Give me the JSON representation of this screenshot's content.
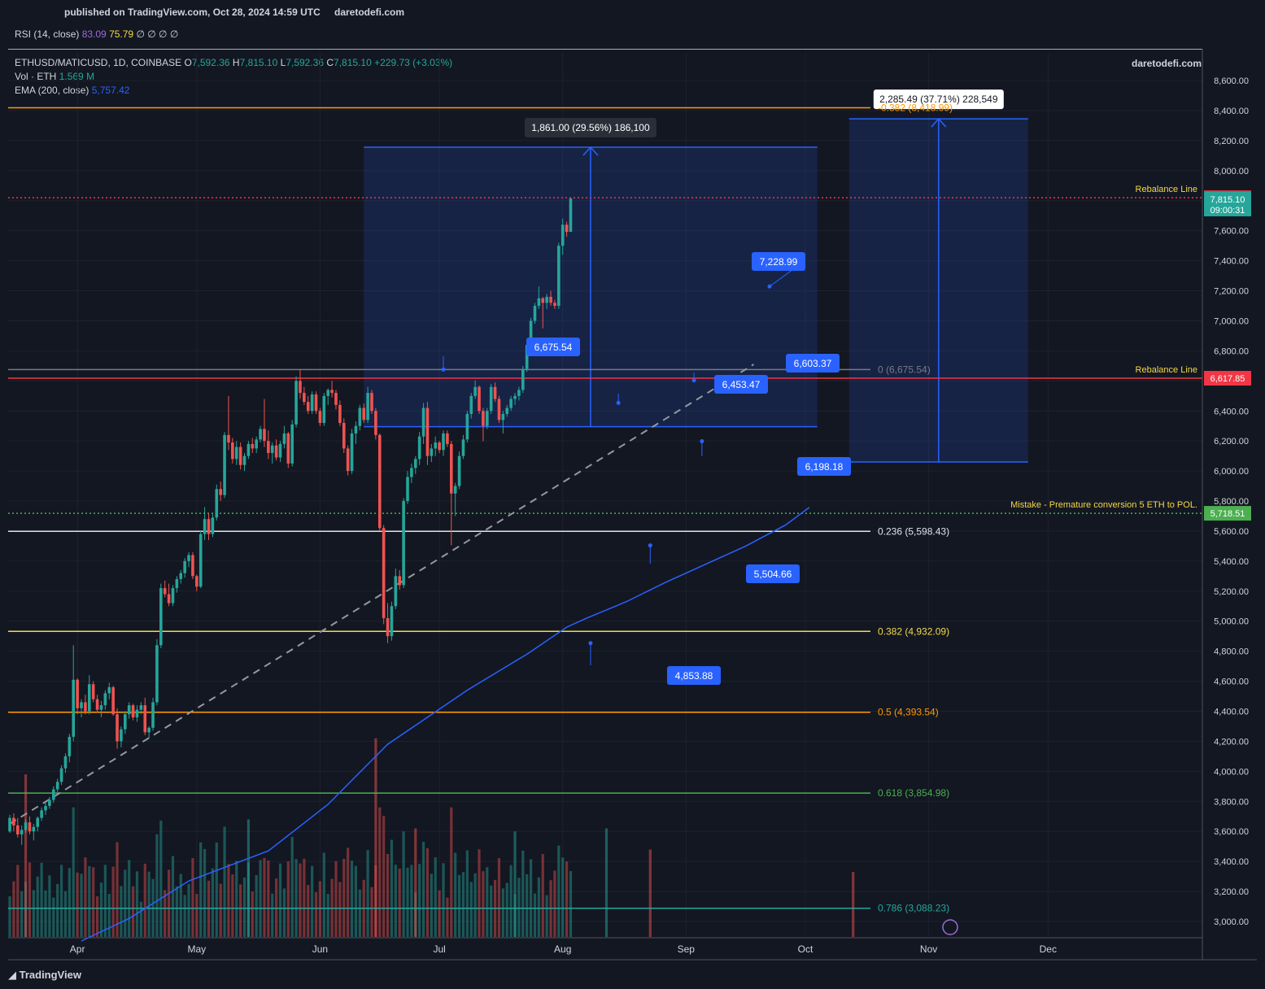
{
  "header": {
    "published": "published on TradingView.com, Oct 28, 2024 14:59 UTC",
    "site": "daretodefi.com"
  },
  "rsi": {
    "label": "RSI (14, close)",
    "v1": "83.09",
    "v2": "75.79",
    "nulls": "∅ ∅ ∅ ∅"
  },
  "symbol": {
    "name": "ETHUSD/MATICUSD, 1D, COINBASE",
    "o_label": "O",
    "o": "7,592.36",
    "h_label": "H",
    "h": "7,815.10",
    "l_label": "L",
    "l": "7,592.36",
    "c_label": "C",
    "c": "7,815.10",
    "change": "+229.73 (+3.03%)",
    "vol_label": "Vol · ETH",
    "vol": "1.569 M",
    "ema_label": "EMA (200, close)",
    "ema": "5,757.42"
  },
  "watermark": "daretodefi.com",
  "unit_button": "MATIC",
  "footer": {
    "brand": "TradingView"
  },
  "colors": {
    "up": "#26a69a",
    "down": "#ef5350",
    "ema": "#2962ff",
    "box": "#2962ff",
    "rebalance": "#f23645",
    "mistake": "#4caf50"
  },
  "chart_data": {
    "type": "candlestick",
    "title": "ETHUSD/MATICUSD, 1D, COINBASE",
    "ylim": [
      2900,
      8750
    ],
    "y_ticks": [
      "3,000.00",
      "3,200.00",
      "3,400.00",
      "3,600.00",
      "3,800.00",
      "4,000.00",
      "4,200.00",
      "4,400.00",
      "4,600.00",
      "4,800.00",
      "5,000.00",
      "5,200.00",
      "5,400.00",
      "5,600.00",
      "5,800.00",
      "6,000.00",
      "6,200.00",
      "6,400.00",
      "6,600.00",
      "6,800.00",
      "7,000.00",
      "7,200.00",
      "7,400.00",
      "7,600.00",
      "7,800.00",
      "8,000.00",
      "8,200.00",
      "8,400.00",
      "8,600.00"
    ],
    "y_tick_values": [
      3000,
      3200,
      3400,
      3600,
      3800,
      4000,
      4200,
      4400,
      4600,
      4800,
      5000,
      5200,
      5400,
      5600,
      5800,
      6000,
      6200,
      6400,
      6600,
      6800,
      7000,
      7200,
      7400,
      7600,
      7800,
      8000,
      8200,
      8400,
      8600
    ],
    "x_ticks": [
      "Apr",
      "May",
      "Jun",
      "Jul",
      "Aug",
      "Sep",
      "Oct",
      "Nov",
      "Dec"
    ],
    "x_tick_days": [
      17,
      47,
      78,
      108,
      139,
      170,
      200,
      231,
      261
    ],
    "fib_levels": [
      {
        "label": "-0.382 (8,418.99)",
        "value": 8418.99,
        "color": "#ff9800"
      },
      {
        "label": "0 (6,675.54)",
        "value": 6675.54,
        "color": "#787b86"
      },
      {
        "label": "0.236 (5,598.43)",
        "value": 5598.43,
        "color": "#e0e3eb"
      },
      {
        "label": "0.382 (4,932.09)",
        "value": 4932.09,
        "color": "#f5d946"
      },
      {
        "label": "0.5 (4,393.54)",
        "value": 4393.54,
        "color": "#ff9800"
      },
      {
        "label": "0.618 (3,854.98)",
        "value": 3854.98,
        "color": "#4caf50"
      },
      {
        "label": "0.786 (3,088.23)",
        "value": 3088.23,
        "color": "#26a69a"
      }
    ],
    "horizontal_lines": [
      {
        "label": "Rebalance Line",
        "value": 7819.89,
        "price_label": "7,819.89",
        "color": "#f23645",
        "style": "dotted"
      },
      {
        "label": "Rebalance Line",
        "value": 6617.85,
        "price_label": "6,617.85",
        "color": "#f23645",
        "style": "solid"
      },
      {
        "label": "Mistake - Premature conversion 5 ETH to POL.",
        "value": 5718.51,
        "price_label": "5,718.51",
        "color": "#4caf50",
        "style": "dotted"
      }
    ],
    "last_price": {
      "price": "7,815.10",
      "countdown": "09:00:31",
      "value": 7815.1
    },
    "price_callouts": [
      {
        "label": "6,675.54",
        "day": 109,
        "value": 6675.54
      },
      {
        "label": "6,453.47",
        "day": 153,
        "value": 6453.47
      },
      {
        "label": "6,603.37",
        "day": 172,
        "value": 6603.37
      },
      {
        "label": "7,228.99",
        "day": 191,
        "value": 7228.99
      },
      {
        "label": "6,198.18",
        "day": 174,
        "value": 6198.18
      },
      {
        "label": "5,504.66",
        "day": 161,
        "value": 5504.66
      },
      {
        "label": "4,853.88",
        "day": 146,
        "value": 4853.88
      }
    ],
    "measure_boxes": [
      {
        "label": "1,861.00 (29.56%) 186,100",
        "day_start": 89,
        "day_end": 203,
        "from": 6295,
        "to": 8156
      },
      {
        "label": "2,285.49 (37.71%) 228,549",
        "day_start": 211,
        "day_end": 256,
        "from": 6060,
        "to": 8345
      }
    ],
    "trend_line": {
      "from_day": 0,
      "from_value": 3650,
      "to_day": 187,
      "to_value": 6710
    },
    "ema_points": [
      [
        18,
        2870
      ],
      [
        30,
        3020
      ],
      [
        45,
        3270
      ],
      [
        65,
        3470
      ],
      [
        80,
        3780
      ],
      [
        95,
        4180
      ],
      [
        115,
        4540
      ],
      [
        130,
        4780
      ],
      [
        140,
        4960
      ],
      [
        145,
        5020
      ],
      [
        155,
        5130
      ],
      [
        165,
        5260
      ],
      [
        175,
        5380
      ],
      [
        185,
        5500
      ],
      [
        195,
        5640
      ],
      [
        201,
        5757.42
      ]
    ],
    "candles": [
      [
        3600,
        3710,
        3590,
        3690
      ],
      [
        3690,
        3720,
        3600,
        3640
      ],
      [
        3640,
        3690,
        3560,
        3580
      ],
      [
        3580,
        3640,
        3510,
        3610
      ],
      [
        3610,
        3680,
        3590,
        3660
      ],
      [
        3660,
        3700,
        3580,
        3600
      ],
      [
        3600,
        3650,
        3540,
        3630
      ],
      [
        3630,
        3700,
        3600,
        3690
      ],
      [
        3690,
        3760,
        3670,
        3740
      ],
      [
        3740,
        3790,
        3710,
        3770
      ],
      [
        3770,
        3830,
        3750,
        3810
      ],
      [
        3810,
        3900,
        3790,
        3880
      ],
      [
        3880,
        3950,
        3850,
        3930
      ],
      [
        3930,
        4040,
        3910,
        4020
      ],
      [
        4020,
        4120,
        3990,
        4100
      ],
      [
        4100,
        4250,
        4060,
        4230
      ],
      [
        4230,
        4840,
        4200,
        4610
      ],
      [
        4610,
        4620,
        4380,
        4420
      ],
      [
        4420,
        4480,
        4360,
        4460
      ],
      [
        4460,
        4510,
        4380,
        4400
      ],
      [
        4400,
        4640,
        4380,
        4580
      ],
      [
        4580,
        4600,
        4460,
        4480
      ],
      [
        4480,
        4510,
        4390,
        4410
      ],
      [
        4410,
        4470,
        4360,
        4440
      ],
      [
        4440,
        4540,
        4410,
        4520
      ],
      [
        4520,
        4590,
        4480,
        4560
      ],
      [
        4560,
        4570,
        4370,
        4380
      ],
      [
        4380,
        4420,
        4150,
        4200
      ],
      [
        4200,
        4300,
        4160,
        4280
      ],
      [
        4280,
        4400,
        4250,
        4380
      ],
      [
        4380,
        4460,
        4350,
        4440
      ],
      [
        4440,
        4450,
        4340,
        4360
      ],
      [
        4360,
        4440,
        4330,
        4410
      ],
      [
        4410,
        4460,
        4380,
        4440
      ],
      [
        4440,
        4490,
        4240,
        4260
      ],
      [
        4260,
        4300,
        4220,
        4290
      ],
      [
        4290,
        4490,
        4270,
        4460
      ],
      [
        4460,
        4880,
        4440,
        4840
      ],
      [
        4840,
        5250,
        4820,
        5220
      ],
      [
        5220,
        5270,
        5160,
        5180
      ],
      [
        5180,
        5250,
        5100,
        5120
      ],
      [
        5120,
        5240,
        5100,
        5220
      ],
      [
        5220,
        5300,
        5190,
        5280
      ],
      [
        5280,
        5340,
        5250,
        5320
      ],
      [
        5320,
        5420,
        5290,
        5400
      ],
      [
        5400,
        5460,
        5360,
        5440
      ],
      [
        5440,
        5460,
        5280,
        5300
      ],
      [
        5300,
        5310,
        5200,
        5230
      ],
      [
        5230,
        5600,
        5220,
        5580
      ],
      [
        5580,
        5760,
        5540,
        5680
      ],
      [
        5680,
        5720,
        5540,
        5580
      ],
      [
        5580,
        5720,
        5560,
        5690
      ],
      [
        5690,
        5910,
        5670,
        5880
      ],
      [
        5880,
        5930,
        5800,
        5840
      ],
      [
        5840,
        6260,
        5820,
        6240
      ],
      [
        6240,
        6500,
        6140,
        6190
      ],
      [
        6190,
        6220,
        6050,
        6080
      ],
      [
        6080,
        6200,
        6040,
        6160
      ],
      [
        6160,
        6190,
        6010,
        6040
      ],
      [
        6040,
        6120,
        6000,
        6100
      ],
      [
        6100,
        6200,
        6080,
        6180
      ],
      [
        6180,
        6220,
        6120,
        6150
      ],
      [
        6150,
        6230,
        6120,
        6210
      ],
      [
        6210,
        6300,
        6190,
        6280
      ],
      [
        6280,
        6480,
        6160,
        6200
      ],
      [
        6200,
        6270,
        6080,
        6120
      ],
      [
        6120,
        6190,
        6050,
        6170
      ],
      [
        6170,
        6210,
        6070,
        6090
      ],
      [
        6090,
        6200,
        6060,
        6180
      ],
      [
        6180,
        6300,
        6150,
        6250
      ],
      [
        6250,
        6260,
        6020,
        6050
      ],
      [
        6050,
        6340,
        6030,
        6310
      ],
      [
        6310,
        6630,
        6290,
        6600
      ],
      [
        6600,
        6676,
        6480,
        6520
      ],
      [
        6520,
        6560,
        6440,
        6460
      ],
      [
        6460,
        6500,
        6380,
        6400
      ],
      [
        6400,
        6530,
        6380,
        6510
      ],
      [
        6510,
        6530,
        6380,
        6400
      ],
      [
        6400,
        6420,
        6300,
        6320
      ],
      [
        6320,
        6520,
        6300,
        6500
      ],
      [
        6500,
        6550,
        6440,
        6540
      ],
      [
        6540,
        6600,
        6490,
        6520
      ],
      [
        6520,
        6540,
        6410,
        6440
      ],
      [
        6440,
        6470,
        6300,
        6320
      ],
      [
        6320,
        6350,
        6120,
        6150
      ],
      [
        6150,
        6170,
        5970,
        6000
      ],
      [
        6000,
        6280,
        5980,
        6250
      ],
      [
        6250,
        6330,
        6180,
        6300
      ],
      [
        6300,
        6440,
        6270,
        6420
      ],
      [
        6420,
        6450,
        6320,
        6340
      ],
      [
        6340,
        6560,
        6320,
        6520
      ],
      [
        6520,
        6540,
        6380,
        6400
      ],
      [
        6400,
        6420,
        6210,
        6240
      ],
      [
        6240,
        6250,
        5600,
        5620
      ],
      [
        5620,
        5640,
        4980,
        5020
      ],
      [
        5020,
        5120,
        4854,
        4900
      ],
      [
        4900,
        5130,
        4870,
        5100
      ],
      [
        5100,
        5350,
        5080,
        5300
      ],
      [
        5300,
        5340,
        5210,
        5240
      ],
      [
        5240,
        5820,
        5220,
        5800
      ],
      [
        5800,
        6000,
        5780,
        5960
      ],
      [
        5960,
        6050,
        5920,
        6020
      ],
      [
        6020,
        6100,
        5980,
        6080
      ],
      [
        6080,
        6260,
        6040,
        6230
      ],
      [
        6230,
        6453,
        6180,
        6420
      ],
      [
        6420,
        6460,
        6040,
        6100
      ],
      [
        6100,
        6180,
        6060,
        6150
      ],
      [
        6150,
        6230,
        6100,
        6190
      ],
      [
        6190,
        6200,
        6120,
        6140
      ],
      [
        6140,
        6270,
        6100,
        6250
      ],
      [
        6250,
        6270,
        6160,
        6180
      ],
      [
        6180,
        6200,
        5505,
        5850
      ],
      [
        5850,
        5920,
        5700,
        5900
      ],
      [
        5900,
        6130,
        5880,
        6100
      ],
      [
        6100,
        6240,
        6080,
        6210
      ],
      [
        6210,
        6400,
        6190,
        6380
      ],
      [
        6380,
        6520,
        6350,
        6500
      ],
      [
        6500,
        6603,
        6480,
        6560
      ],
      [
        6560,
        6570,
        6380,
        6400
      ],
      [
        6400,
        6420,
        6198,
        6300
      ],
      [
        6300,
        6420,
        6280,
        6400
      ],
      [
        6400,
        6580,
        6380,
        6560
      ],
      [
        6560,
        6590,
        6460,
        6480
      ],
      [
        6480,
        6500,
        6320,
        6340
      ],
      [
        6340,
        6400,
        6250,
        6380
      ],
      [
        6380,
        6440,
        6360,
        6420
      ],
      [
        6420,
        6500,
        6400,
        6480
      ],
      [
        6480,
        6520,
        6440,
        6500
      ],
      [
        6500,
        6560,
        6470,
        6540
      ],
      [
        6540,
        6700,
        6520,
        6680
      ],
      [
        6680,
        6860,
        6660,
        6840
      ],
      [
        6840,
        7020,
        6820,
        7000
      ],
      [
        7000,
        7120,
        6980,
        7100
      ],
      [
        7100,
        7229,
        7080,
        7150
      ],
      [
        7150,
        7160,
        6950,
        7120
      ],
      [
        7120,
        7180,
        7080,
        7160
      ],
      [
        7160,
        7200,
        7100,
        7120
      ],
      [
        7120,
        7140,
        7080,
        7100
      ],
      [
        7100,
        7520,
        7080,
        7500
      ],
      [
        7500,
        7680,
        7440,
        7640
      ],
      [
        7640,
        7660,
        7560,
        7592
      ],
      [
        7592.36,
        7815.1,
        7592.36,
        7815.1
      ]
    ],
    "volume": [
      [
        4,
        3980,
        "down"
      ],
      [
        60,
        3680,
        "up"
      ],
      [
        92,
        4220,
        "down"
      ],
      [
        102,
        3620,
        "down"
      ],
      [
        127,
        3600,
        "up"
      ],
      [
        150,
        3620,
        "up"
      ],
      [
        161,
        3480,
        "down"
      ],
      [
        212,
        3330,
        "down"
      ]
    ]
  }
}
